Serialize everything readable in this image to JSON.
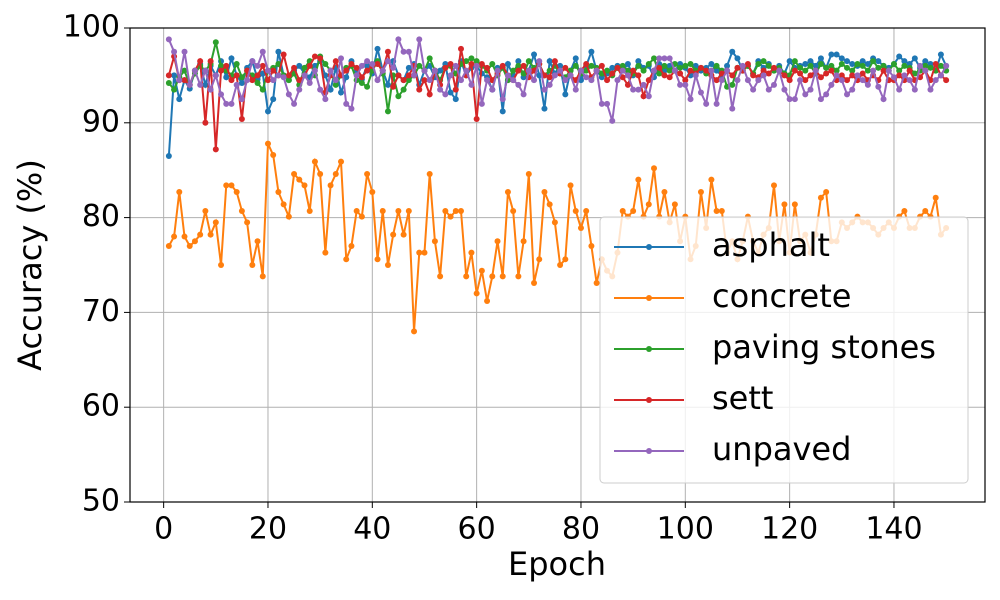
{
  "chart_data": {
    "type": "line",
    "x_label": "Epoch",
    "y_label": "Accuracy (%)",
    "xlim": [
      -6.45,
      157.45
    ],
    "ylim": [
      50,
      100
    ],
    "xticks": [
      0,
      20,
      40,
      60,
      80,
      100,
      120,
      140
    ],
    "yticks": [
      50,
      60,
      70,
      80,
      90,
      100
    ],
    "grid": true,
    "legend": "lower right",
    "marker": "o",
    "x": [
      1,
      2,
      3,
      4,
      5,
      6,
      7,
      8,
      9,
      10,
      11,
      12,
      13,
      14,
      15,
      16,
      17,
      18,
      19,
      20,
      21,
      22,
      23,
      24,
      25,
      26,
      27,
      28,
      29,
      30,
      31,
      32,
      33,
      34,
      35,
      36,
      37,
      38,
      39,
      40,
      41,
      42,
      43,
      44,
      45,
      46,
      47,
      48,
      49,
      50,
      51,
      52,
      53,
      54,
      55,
      56,
      57,
      58,
      59,
      60,
      61,
      62,
      63,
      64,
      65,
      66,
      67,
      68,
      69,
      70,
      71,
      72,
      73,
      74,
      75,
      76,
      77,
      78,
      79,
      80,
      81,
      82,
      83,
      84,
      85,
      86,
      87,
      88,
      89,
      90,
      91,
      92,
      93,
      94,
      95,
      96,
      97,
      98,
      99,
      100,
      101,
      102,
      103,
      104,
      105,
      106,
      107,
      108,
      109,
      110,
      111,
      112,
      113,
      114,
      115,
      116,
      117,
      118,
      119,
      120,
      121,
      122,
      123,
      124,
      125,
      126,
      127,
      128,
      129,
      130,
      131,
      132,
      133,
      134,
      135,
      136,
      137,
      138,
      139,
      140,
      141,
      142,
      143,
      144,
      145,
      146,
      147,
      148,
      149,
      150
    ],
    "series": [
      {
        "name": "asphalt",
        "color": "#1f77b4",
        "values": [
          86.5,
          95.0,
          92.5,
          94.5,
          93.6,
          95.5,
          96.2,
          94.0,
          96.0,
          95.0,
          96.5,
          94.8,
          96.8,
          95.0,
          94.2,
          95.8,
          96.5,
          94.6,
          95.2,
          91.2,
          92.5,
          97.5,
          95.0,
          94.5,
          95.5,
          96.0,
          95.2,
          94.8,
          96.0,
          96.5,
          95.0,
          93.5,
          95.8,
          93.2,
          94.8,
          96.5,
          95.5,
          94.6,
          96.0,
          95.2,
          97.8,
          95.5,
          94.0,
          96.5,
          95.0,
          94.5,
          95.8,
          96.2,
          94.0,
          95.5,
          96.0,
          94.8,
          95.5,
          96.2,
          93.2,
          92.5,
          96.5,
          95.0,
          95.8,
          96.0,
          95.2,
          94.8,
          93.5,
          95.8,
          91.2,
          96.2,
          95.0,
          96.5,
          94.8,
          95.5,
          97.2,
          95.0,
          91.5,
          96.5,
          95.2,
          96.0,
          93.0,
          95.5,
          96.8,
          94.5,
          96.0,
          97.5,
          95.5,
          94.8,
          95.2,
          95.8,
          96.0,
          95.5,
          96.2,
          95.0,
          96.5,
          95.8,
          96.0,
          94.8,
          96.2,
          95.5,
          96.0,
          95.5,
          96.2,
          95.8,
          95.0,
          96.0,
          95.5,
          95.8,
          96.2,
          95.5,
          95.0,
          96.0,
          97.5,
          96.8,
          95.5,
          96.0,
          95.2,
          96.5,
          95.8,
          96.2,
          95.5,
          96.0,
          95.2,
          96.5,
          95.8,
          96.0,
          96.2,
          96.5,
          96.0,
          96.8,
          95.8,
          97.2,
          97.2,
          96.8,
          96.5,
          96.2,
          96.0,
          96.5,
          96.2,
          96.8,
          96.5,
          96.0,
          95.8,
          96.2,
          97.0,
          96.5,
          96.2,
          96.8,
          95.8,
          96.5,
          96.2,
          95.5,
          97.2,
          96.0
        ]
      },
      {
        "name": "concrete",
        "color": "#ff7f0e",
        "values": [
          77,
          78,
          82.7,
          78,
          77,
          77.5,
          78.2,
          80.7,
          78.2,
          79.5,
          75,
          83.4,
          83.4,
          82.7,
          80.7,
          79.5,
          75,
          77.5,
          73.8,
          87.8,
          86.6,
          82.7,
          81.4,
          80.1,
          84.6,
          84,
          83.4,
          80.7,
          85.9,
          84.6,
          76.3,
          83.4,
          84.6,
          85.9,
          75.6,
          77,
          80.7,
          80.1,
          84.6,
          82.7,
          75.6,
          80.7,
          75,
          78.2,
          80.7,
          78.2,
          80.7,
          68,
          76.3,
          76.3,
          84.6,
          77.5,
          73.8,
          80.7,
          80.1,
          80.7,
          80.7,
          73.8,
          76.3,
          72,
          74.4,
          71.2,
          73.8,
          77.5,
          73.8,
          82.7,
          80.7,
          73.8,
          77.5,
          84.6,
          73.1,
          75.6,
          82.7,
          81.4,
          79.5,
          75,
          75.6,
          83.4,
          80.7,
          78.9,
          80.7,
          77,
          73.1,
          75.6,
          74.4,
          73.8,
          76.3,
          80.7,
          80.1,
          80.7,
          84,
          80.1,
          81.4,
          85.2,
          80.1,
          82.7,
          79.5,
          81.4,
          77.5,
          80.1,
          75.6,
          77,
          82.7,
          78.9,
          84,
          80.7,
          80.7,
          76.3,
          77.5,
          75.6,
          77.5,
          80.1,
          77.5,
          76.3,
          78.2,
          78.9,
          83.4,
          77.5,
          81.4,
          76.3,
          81.4,
          77.5,
          78.2,
          76.3,
          78.2,
          82.1,
          82.7,
          77.5,
          77.5,
          79.5,
          78.9,
          79.5,
          80.1,
          79.5,
          79.5,
          78.9,
          78.2,
          78.9,
          79.5,
          78.9,
          80.1,
          80.7,
          78.9,
          78.9,
          80.1,
          80.7,
          80.1,
          82.1,
          78.2,
          78.9
        ]
      },
      {
        "name": "paving stones",
        "color": "#2ca02c",
        "values": [
          94.2,
          93.5,
          94.8,
          95.5,
          94.0,
          95.2,
          96.0,
          95.5,
          96.2,
          98.5,
          96.0,
          95.5,
          95.0,
          96.2,
          94.8,
          95.5,
          95.0,
          94.2,
          93.5,
          95.5,
          95.8,
          96.2,
          95.0,
          94.5,
          95.2,
          94.0,
          95.8,
          96.5,
          95.0,
          97.0,
          96.2,
          95.5,
          94.0,
          95.0,
          95.8,
          96.0,
          94.5,
          94.2,
          93.8,
          95.5,
          96.5,
          95.2,
          91.2,
          95.0,
          92.8,
          93.5,
          94.5,
          95.0,
          96.0,
          95.5,
          96.8,
          95.5,
          94.5,
          95.8,
          96.0,
          95.2,
          96.2,
          96.5,
          96.8,
          96.5,
          96.0,
          95.5,
          96.2,
          95.0,
          95.8,
          94.5,
          95.5,
          96.0,
          95.2,
          96.5,
          95.8,
          96.2,
          95.0,
          95.5,
          96.0,
          95.2,
          94.8,
          95.5,
          96.0,
          95.2,
          95.5,
          96.0,
          95.8,
          95.2,
          95.5,
          95.0,
          95.8,
          96.0,
          95.5,
          95.2,
          96.0,
          95.5,
          96.2,
          96.8,
          95.2,
          96.0,
          95.5,
          96.2,
          95.8,
          96.0,
          96.2,
          95.5,
          95.8,
          95.2,
          95.5,
          96.0,
          95.5,
          93.8,
          94.0,
          95.8,
          95.5,
          96.0,
          95.2,
          96.2,
          96.5,
          96.0,
          95.5,
          95.8,
          95.2,
          95.0,
          96.5,
          95.8,
          95.5,
          96.0,
          95.2,
          96.2,
          95.8,
          96.0,
          95.5,
          96.2,
          95.8,
          95.5,
          96.2,
          96.0,
          95.5,
          96.5,
          95.8,
          96.0,
          95.5,
          96.2,
          95.5,
          96.0,
          95.8,
          95.2,
          95.5,
          96.0,
          95.8,
          95.5,
          96.0,
          95.5
        ]
      },
      {
        "name": "sett",
        "color": "#d62728",
        "values": [
          95.0,
          97.0,
          94.5,
          94.5,
          94.0,
          95.5,
          96.5,
          90.0,
          96.5,
          87.2,
          95.5,
          96.0,
          94.5,
          95.0,
          90.4,
          95.5,
          94.5,
          95.0,
          96.0,
          94.5,
          95.5,
          95.0,
          97.2,
          95.0,
          95.8,
          94.5,
          95.0,
          96.0,
          97.0,
          96.8,
          93.2,
          95.0,
          96.5,
          95.0,
          95.5,
          96.2,
          95.8,
          94.8,
          95.5,
          96.0,
          96.2,
          95.5,
          97.5,
          93.8,
          95.0,
          94.5,
          95.0,
          96.0,
          93.5,
          94.5,
          93.0,
          95.5,
          94.0,
          95.8,
          96.2,
          93.5,
          97.8,
          95.0,
          96.2,
          90.4,
          96.2,
          95.8,
          94.5,
          95.2,
          96.0,
          95.0,
          94.5,
          95.5,
          96.0,
          94.8,
          95.5,
          96.2,
          95.0,
          94.8,
          96.5,
          95.2,
          95.8,
          95.0,
          94.5,
          95.5,
          96.2,
          94.8,
          95.5,
          96.0,
          94.5,
          95.2,
          95.8,
          94.8,
          94.0,
          95.5,
          95.0,
          92.8,
          94.5,
          95.5,
          95.8,
          95.0,
          94.8,
          95.5,
          95.2,
          94.5,
          95.5,
          95.2,
          95.8,
          95.5,
          95.0,
          94.5,
          95.2,
          95.5,
          95.0,
          95.8,
          95.5,
          96.2,
          95.0,
          94.8,
          95.5,
          95.2,
          95.8,
          95.5,
          95.0,
          94.5,
          95.5,
          95.2,
          94.5,
          95.0,
          95.5,
          94.8,
          95.2,
          95.5,
          94.5,
          95.0,
          94.5,
          95.0,
          94.5,
          95.2,
          94.5,
          95.0,
          94.5,
          95.5,
          94.5,
          94.5,
          95.0,
          94.5,
          95.5,
          94.5,
          94.8,
          95.5,
          94.5,
          96.2,
          95.0,
          94.5
        ]
      },
      {
        "name": "unpaved",
        "color": "#9467bd",
        "values": [
          98.8,
          97.5,
          94.5,
          97.5,
          94.0,
          95.5,
          94.0,
          95.5,
          93.5,
          95.0,
          93.0,
          92.0,
          92.0,
          94.0,
          92.5,
          94.5,
          96.5,
          96.0,
          97.5,
          95.5,
          94.5,
          95.0,
          94.8,
          93.0,
          92.0,
          93.5,
          95.0,
          94.2,
          95.5,
          93.5,
          92.5,
          95.5,
          94.5,
          96.8,
          92.0,
          91.5,
          95.0,
          96.0,
          96.5,
          96.2,
          94.5,
          95.5,
          96.5,
          95.8,
          98.8,
          97.5,
          97.5,
          95.0,
          98.8,
          95.5,
          94.5,
          95.5,
          93.5,
          93.0,
          95.0,
          96.0,
          94.5,
          95.5,
          94.0,
          96.0,
          92.0,
          94.5,
          93.5,
          95.5,
          92.5,
          95.0,
          94.5,
          94.0,
          93.0,
          95.5,
          94.5,
          96.5,
          93.5,
          94.0,
          95.0,
          95.5,
          94.5,
          95.0,
          93.5,
          95.5,
          94.8,
          94.5,
          95.5,
          92.0,
          92.0,
          90.2,
          94.5,
          95.5,
          95.0,
          93.5,
          93.5,
          94.0,
          92.8,
          95.5,
          96.8,
          96.8,
          96.8,
          95.5,
          94.0,
          94.0,
          92.5,
          95.0,
          93.2,
          92.0,
          95.5,
          92.0,
          94.5,
          95.5,
          91.5,
          94.5,
          96.0,
          94.5,
          93.5,
          94.5,
          95.0,
          93.5,
          94.0,
          95.5,
          93.5,
          92.5,
          92.5,
          94.5,
          93.0,
          93.5,
          95.5,
          92.5,
          93.0,
          94.0,
          95.0,
          94.5,
          93.0,
          93.5,
          95.0,
          94.5,
          94.0,
          95.5,
          93.8,
          92.5,
          95.5,
          94.8,
          93.5,
          95.0,
          94.5,
          93.5,
          96.0,
          95.5,
          93.5,
          94.5,
          95.0,
          96.0
        ]
      }
    ]
  }
}
